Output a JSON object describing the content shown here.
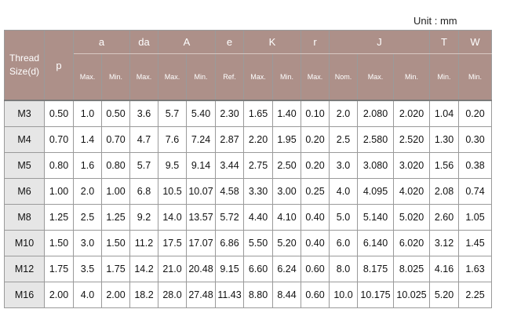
{
  "unit_label": "Unit : mm",
  "header": {
    "thread_size": "Thread\nSize(d)",
    "p": "p",
    "groups": [
      "a",
      "da",
      "A",
      "e",
      "K",
      "r",
      "J",
      "T",
      "W"
    ],
    "subs": [
      "Max.",
      "Min.",
      "Max.",
      "Max.",
      "Min.",
      "Ref.",
      "Max.",
      "Min.",
      "Max.",
      "Nom.",
      "Max.",
      "Min.",
      "Min.",
      "Min."
    ]
  },
  "rows": [
    [
      "M3",
      "0.50",
      "1.0",
      "0.50",
      "3.6",
      "5.7",
      "5.40",
      "2.30",
      "1.65",
      "1.40",
      "0.10",
      "2.0",
      "2.080",
      "2.020",
      "1.04",
      "0.20"
    ],
    [
      "M4",
      "0.70",
      "1.4",
      "0.70",
      "4.7",
      "7.6",
      "7.24",
      "2.87",
      "2.20",
      "1.95",
      "0.20",
      "2.5",
      "2.580",
      "2.520",
      "1.30",
      "0.30"
    ],
    [
      "M5",
      "0.80",
      "1.6",
      "0.80",
      "5.7",
      "9.5",
      "9.14",
      "3.44",
      "2.75",
      "2.50",
      "0.20",
      "3.0",
      "3.080",
      "3.020",
      "1.56",
      "0.38"
    ],
    [
      "M6",
      "1.00",
      "2.0",
      "1.00",
      "6.8",
      "10.5",
      "10.07",
      "4.58",
      "3.30",
      "3.00",
      "0.25",
      "4.0",
      "4.095",
      "4.020",
      "2.08",
      "0.74"
    ],
    [
      "M8",
      "1.25",
      "2.5",
      "1.25",
      "9.2",
      "14.0",
      "13.57",
      "5.72",
      "4.40",
      "4.10",
      "0.40",
      "5.0",
      "5.140",
      "5.020",
      "2.60",
      "1.05"
    ],
    [
      "M10",
      "1.50",
      "3.0",
      "1.50",
      "11.2",
      "17.5",
      "17.07",
      "6.86",
      "5.50",
      "5.20",
      "0.40",
      "6.0",
      "6.140",
      "6.020",
      "3.12",
      "1.45"
    ],
    [
      "M12",
      "1.75",
      "3.5",
      "1.75",
      "14.2",
      "21.0",
      "20.48",
      "9.15",
      "6.60",
      "6.24",
      "0.60",
      "8.0",
      "8.175",
      "8.025",
      "4.16",
      "1.63"
    ],
    [
      "M16",
      "2.00",
      "4.0",
      "2.00",
      "18.2",
      "28.0",
      "27.48",
      "11.43",
      "8.80",
      "8.44",
      "0.60",
      "10.0",
      "10.175",
      "10.025",
      "5.20",
      "2.25"
    ]
  ]
}
